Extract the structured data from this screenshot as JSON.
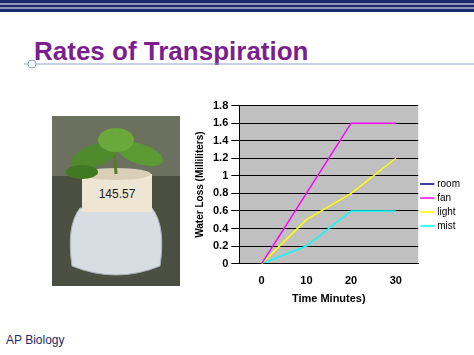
{
  "slide": {
    "title": "Rates of Transpiration",
    "footer": "AP Biology",
    "photo_label": "145.57"
  },
  "chart_data": {
    "type": "line",
    "categories": [
      "0",
      "10",
      "20",
      "30"
    ],
    "x_label": "Time Minutes)",
    "y_label": "Water Loss (Milliliters)",
    "series": [
      {
        "name": "room",
        "color": "#000080",
        "values": [
          null,
          null,
          null,
          null
        ]
      },
      {
        "name": "fan",
        "color": "#ff00ff",
        "values": [
          0,
          0.8,
          1.6,
          1.6
        ]
      },
      {
        "name": "light",
        "color": "#ffff00",
        "values": [
          0,
          0.5,
          0.8,
          1.2
        ]
      },
      {
        "name": "mist",
        "color": "#00ffff",
        "values": [
          0,
          0.2,
          0.6,
          0.6
        ]
      }
    ],
    "ylim": [
      0,
      1.8
    ],
    "yticks": [
      0,
      0.2,
      0.4,
      0.6,
      0.8,
      1,
      1.2,
      1.4,
      1.6,
      1.8
    ],
    "grid": true,
    "legend": "right"
  }
}
